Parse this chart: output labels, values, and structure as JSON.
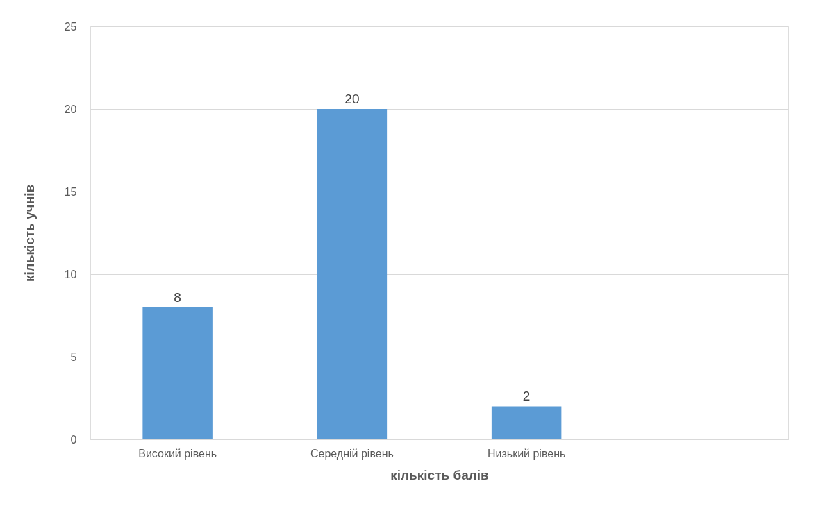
{
  "chart_data": {
    "type": "bar",
    "xlabel": "кількість балів",
    "ylabel": "кількість учнів",
    "categories": [
      "Високий рівень",
      "Середній рівень",
      "Низький рівень",
      null
    ],
    "values": [
      8,
      20,
      2,
      null
    ],
    "color": "#5b9bd5",
    "ylim": [
      0,
      25
    ],
    "yticks": [
      0,
      5,
      10,
      15,
      20,
      25
    ],
    "grid": "y",
    "data_labels": true
  }
}
